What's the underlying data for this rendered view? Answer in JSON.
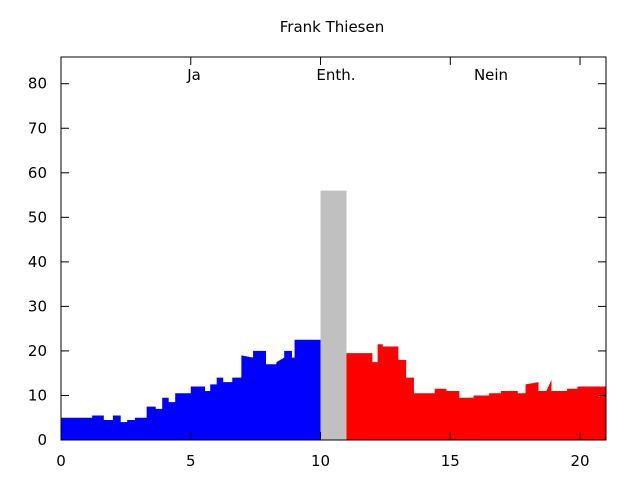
{
  "chart_data": {
    "type": "area",
    "title": "Frank Thiesen",
    "annotations": [
      "Ja",
      "Enth.",
      "Nein"
    ],
    "xlim": [
      0,
      21
    ],
    "ylim": [
      0,
      86
    ],
    "xticks": [
      0,
      5,
      10,
      15,
      20
    ],
    "yticks": [
      0,
      10,
      20,
      30,
      40,
      50,
      60,
      70,
      80
    ],
    "series": [
      {
        "color": "#0000ff",
        "x": [
          0,
          1.2,
          1.2,
          1.65,
          1.65,
          2,
          2,
          2.3,
          2.3,
          2.55,
          2.55,
          2.85,
          2.85,
          3.3,
          3.3,
          3.65,
          3.65,
          3.9,
          3.9,
          4.15,
          4.15,
          4.4,
          4.4,
          5,
          5,
          5.55,
          5.55,
          5.75,
          5.75,
          6,
          6,
          6.25,
          6.25,
          6.6,
          6.6,
          6.95,
          6.95,
          7.4,
          7.4,
          7.9,
          7.9,
          8.3,
          8.3,
          8.6,
          8.6,
          8.9,
          8.9,
          9,
          9,
          10
        ],
        "values": [
          5,
          5,
          5.5,
          5.5,
          4.5,
          4.5,
          5.5,
          5.5,
          4,
          4,
          4.5,
          4.5,
          5,
          5,
          7.5,
          7.5,
          7,
          7,
          9.5,
          9.5,
          8.5,
          8.5,
          10.5,
          10.5,
          12,
          12,
          11,
          11,
          12.5,
          12.5,
          14,
          14,
          13,
          13,
          14,
          14,
          19,
          18.5,
          20,
          20,
          17,
          17,
          17.5,
          18.5,
          20,
          20,
          18.5,
          18.5,
          22.5,
          22.5
        ]
      },
      {
        "color": "#c0c0c0",
        "x": [
          10,
          11
        ],
        "values": [
          56,
          56
        ]
      },
      {
        "color": "#ff0000",
        "x": [
          11,
          12,
          12,
          12.2,
          12.2,
          12.4,
          12.4,
          13,
          13,
          13.3,
          13.3,
          13.6,
          13.6,
          14.4,
          14.4,
          14.85,
          14.85,
          15.35,
          15.35,
          15.9,
          15.9,
          16.5,
          16.5,
          16.95,
          16.95,
          17.6,
          17.6,
          17.9,
          17.9,
          18.4,
          18.4,
          18.7,
          18.9,
          18.9,
          19.5,
          19.5,
          19.9,
          19.9,
          21
        ],
        "values": [
          19.5,
          19.5,
          17.5,
          17.5,
          21.5,
          21.5,
          21,
          21,
          18,
          18,
          14,
          14,
          10.5,
          10.5,
          11.5,
          11.5,
          11,
          11,
          9.5,
          9.5,
          10,
          10,
          10.5,
          10.5,
          11,
          11,
          10.5,
          10.5,
          12.5,
          13,
          11,
          11,
          13.5,
          11,
          11,
          11.5,
          11.5,
          12,
          12
        ]
      }
    ]
  }
}
